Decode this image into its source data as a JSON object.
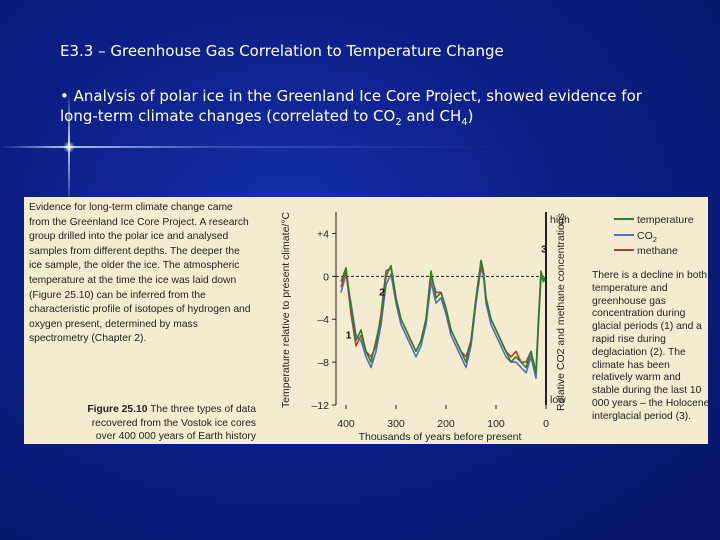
{
  "slide": {
    "title": "E3.3 – Greenhouse Gas Correlation to Temperature Change",
    "bullet_prefix": "• Analysis of polar ice in the Greenland Ice Core Project, showed evidence for long-term climate changes (correlated to CO",
    "co2_sub": "2",
    "bullet_mid": " and CH",
    "ch4_sub": "4",
    "bullet_end": ")"
  },
  "panel": {
    "left_text": "Evidence for long-term climate change came from the Greenland Ice Core Project. A research group drilled into the polar ice and analysed samples from different depths. The deeper the ice sample, the older the ice. The atmospheric temperature at the time the ice was laid down (Figure 25.10) can be inferred from the characteristic profile of isotopes of hydrogen and oxygen present, determined by mass spectrometry (Chapter 2).",
    "caption_label": "Figure 25.10",
    "caption_text": " The three types of data recovered from the Vostok ice cores over 400 000 years of Earth history",
    "right_text": "There is a decline in both temperature and greenhouse gas concentration during glacial periods (1) and a rapid rise during deglaciation (2). The climate has been relatively warm and stable during the last 10 000 years – the Holocene interglacial period (3)."
  },
  "colors": {
    "temperature": "#2f7d2f",
    "co2": "#4d6fb8",
    "methane": "#b0423a"
  },
  "chart_data": {
    "type": "line",
    "title": "",
    "xlabel": "Thousands of years before present",
    "ylabel": "Temperature relative to present climate/°C",
    "y2label": "Relative CO2 and methane concentrations",
    "xlim": [
      420,
      0
    ],
    "ylim": [
      -12,
      6
    ],
    "x_ticks": [
      400,
      300,
      200,
      100,
      0
    ],
    "y_ticks": [
      {
        "value": 4,
        "label": "+4"
      },
      {
        "value": 0,
        "label": "0"
      },
      {
        "value": -4,
        "label": "–4"
      },
      {
        "value": -8,
        "label": "–8"
      },
      {
        "value": -12,
        "label": "–12"
      }
    ],
    "y2_high_label": "high",
    "y2_low_label": "low",
    "reference_line": 0,
    "legend": {
      "temperature": "temperature",
      "co2_main": "CO",
      "co2_sub": "2",
      "methane": "methane"
    },
    "annotations": [
      {
        "label": "1",
        "x": 395,
        "y": -5.8
      },
      {
        "label": "2",
        "x": 328,
        "y": -1.8
      },
      {
        "label": "3",
        "x": 4,
        "y": 2.2
      }
    ],
    "x": [
      410,
      400,
      390,
      380,
      370,
      360,
      350,
      340,
      330,
      320,
      310,
      300,
      290,
      280,
      270,
      260,
      250,
      240,
      230,
      220,
      210,
      200,
      190,
      180,
      170,
      160,
      150,
      140,
      130,
      125,
      120,
      110,
      100,
      90,
      80,
      70,
      60,
      50,
      40,
      30,
      20,
      15,
      10,
      5,
      0
    ],
    "series": [
      {
        "name": "temperature",
        "values": [
          -0.5,
          0.8,
          -3,
          -6,
          -5,
          -7,
          -8,
          -6,
          -4,
          0,
          1,
          -2,
          -4,
          -5,
          -6,
          -7,
          -6,
          -4,
          0.5,
          -2,
          -1.5,
          -3,
          -5,
          -6,
          -7,
          -8,
          -6,
          -2,
          1.5,
          0.5,
          -2,
          -4,
          -5,
          -6,
          -7,
          -8,
          -7.5,
          -8,
          -8.5,
          -7,
          -9,
          -4,
          0.5,
          -0.5,
          0
        ]
      },
      {
        "name": "co2",
        "values": [
          -1.5,
          0.2,
          -2.5,
          -5.5,
          -6,
          -7.5,
          -8.5,
          -7,
          -4.5,
          -0.8,
          0.2,
          -2.5,
          -4.5,
          -5.5,
          -6.5,
          -7.5,
          -6.5,
          -4.5,
          -0.5,
          -2.5,
          -2,
          -3.5,
          -5.5,
          -6.5,
          -7.5,
          -8.5,
          -6.5,
          -2.5,
          0.8,
          0,
          -2.5,
          -4.5,
          -5.5,
          -6.5,
          -7.5,
          -8,
          -8,
          -8.5,
          -9,
          -7.5,
          -9.5,
          -4.5,
          0,
          -0.5,
          0
        ]
      },
      {
        "name": "methane",
        "values": [
          -1,
          0.5,
          -3.5,
          -6.5,
          -5.5,
          -7,
          -7.5,
          -6.5,
          -3.5,
          0.5,
          0.8,
          -2,
          -4,
          -5,
          -6,
          -7,
          -6,
          -4,
          0,
          -1.5,
          -1.5,
          -3,
          -5,
          -6,
          -7,
          -7.5,
          -6,
          -2,
          1,
          0.3,
          -2,
          -4,
          -5,
          -6,
          -7,
          -7.5,
          -7,
          -8,
          -8,
          -7,
          -9,
          -4,
          0.2,
          -0.3,
          0
        ]
      }
    ]
  }
}
